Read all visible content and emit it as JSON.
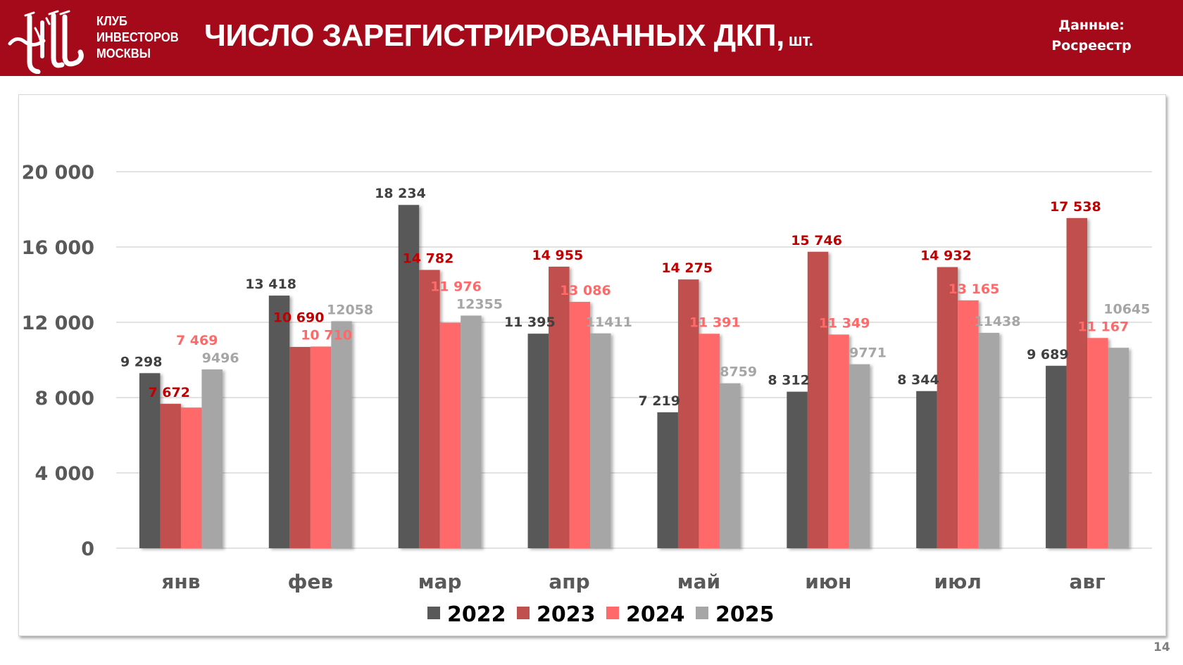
{
  "header": {
    "org_lines": [
      "КЛУБ",
      "ИНВЕСТОРОВ",
      "МОСКВЫ"
    ],
    "title": "ЧИСЛО ЗАРЕГИСТРИРОВАННЫХ ДКП,",
    "title_unit": "шт.",
    "source_label": "Данные:",
    "source_value": "Росреестр"
  },
  "page_number": "14",
  "colors": {
    "header_bg": "#a50a1b",
    "series_2022": "#595959",
    "series_2023": "#c0504d",
    "series_2024": "#ff6969",
    "series_2025": "#a6a6a6"
  },
  "chart_data": {
    "type": "bar",
    "title": "ЧИСЛО ЗАРЕГИСТРИРОВАННЫХ ДКП, шт.",
    "xlabel": "",
    "ylabel": "",
    "categories": [
      "янв",
      "фев",
      "мар",
      "апр",
      "май",
      "июн",
      "июл",
      "авг"
    ],
    "ylim": [
      0,
      20000
    ],
    "yticks": [
      0,
      4000,
      8000,
      12000,
      16000,
      20000
    ],
    "ytick_labels": [
      "0",
      "4 000",
      "8 000",
      "12 000",
      "16 000",
      "20 000"
    ],
    "grid": true,
    "legend_position": "bottom",
    "series": [
      {
        "name": "2022",
        "color": "#595959",
        "label_color": "#404040",
        "values": [
          9298,
          13418,
          18234,
          11395,
          7219,
          8312,
          8344,
          9689
        ],
        "labels": [
          "9 298",
          "13 418",
          "18 234",
          "11 395",
          "7 219",
          "8 312",
          "8 344",
          "9 689"
        ]
      },
      {
        "name": "2023",
        "color": "#c0504d",
        "label_color": "#c00000",
        "values": [
          7672,
          10690,
          14782,
          14955,
          14275,
          15746,
          14932,
          17538
        ],
        "labels": [
          "7 672",
          "10 690",
          "14 782",
          "14 955",
          "14 275",
          "15 746",
          "14 932",
          "17 538"
        ]
      },
      {
        "name": "2024",
        "color": "#ff6969",
        "label_color": "#ff6969",
        "values": [
          7469,
          10710,
          11976,
          13086,
          11391,
          11349,
          13165,
          11167
        ],
        "labels": [
          "7 469",
          "10 710",
          "11 976",
          "13 086",
          "11 391",
          "11 349",
          "13 165",
          "11 167"
        ]
      },
      {
        "name": "2025",
        "color": "#a6a6a6",
        "label_color": "#a6a6a6",
        "values": [
          9496,
          12058,
          12355,
          11411,
          8759,
          9771,
          11438,
          10645
        ],
        "labels": [
          "9496",
          "12058",
          "12355",
          "11411",
          "8759",
          "9771",
          "11438",
          "10645"
        ]
      }
    ]
  }
}
